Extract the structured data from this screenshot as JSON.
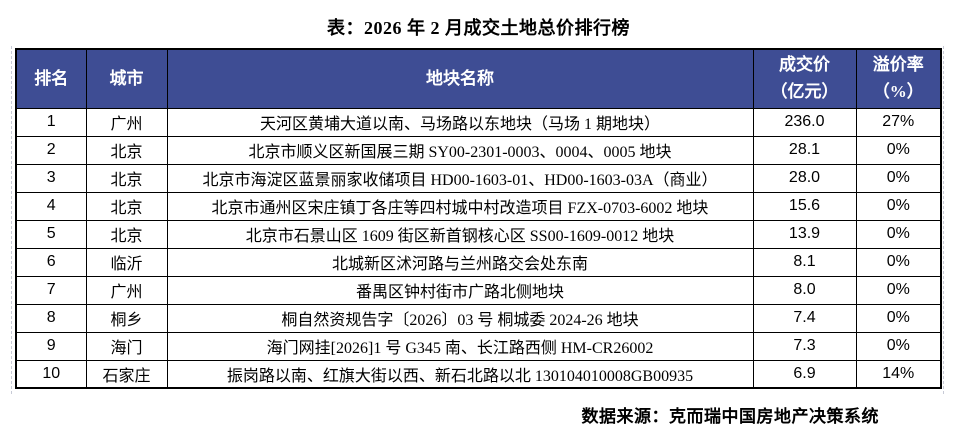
{
  "title": "表：2026 年 2 月成交土地总价排行榜",
  "colors": {
    "header_bg": "#3E4D94",
    "header_text": "#FFFFFF",
    "border": "#000000"
  },
  "table": {
    "headers": {
      "rank": "排名",
      "city": "城市",
      "plot": "地块名称",
      "price_line1": "成交价",
      "price_line2": "（亿元）",
      "premium_line1": "溢价率",
      "premium_line2": "（%）"
    },
    "rows": [
      {
        "rank": "1",
        "city": "广州",
        "plot": "天河区黄埔大道以南、马场路以东地块（马场 1 期地块）",
        "price": "236.0",
        "premium": "27%"
      },
      {
        "rank": "2",
        "city": "北京",
        "plot": "北京市顺义区新国展三期 SY00-2301-0003、0004、0005 地块",
        "price": "28.1",
        "premium": "0%"
      },
      {
        "rank": "3",
        "city": "北京",
        "plot": "北京市海淀区蓝景丽家收储项目 HD00-1603-01、HD00-1603-03A（商业）",
        "price": "28.0",
        "premium": "0%"
      },
      {
        "rank": "4",
        "city": "北京",
        "plot": "北京市通州区宋庄镇丁各庄等四村城中村改造项目 FZX-0703-6002 地块",
        "price": "15.6",
        "premium": "0%"
      },
      {
        "rank": "5",
        "city": "北京",
        "plot": "北京市石景山区 1609 街区新首钢核心区 SS00-1609-0012 地块",
        "price": "13.9",
        "premium": "0%"
      },
      {
        "rank": "6",
        "city": "临沂",
        "plot": "北城新区沭河路与兰州路交会处东南",
        "price": "8.1",
        "premium": "0%"
      },
      {
        "rank": "7",
        "city": "广州",
        "plot": "番禺区钟村街市广路北侧地块",
        "price": "8.0",
        "premium": "0%"
      },
      {
        "rank": "8",
        "city": "桐乡",
        "plot": "桐自然资规告字〔2026〕03 号 桐城委 2024-26 地块",
        "price": "7.4",
        "premium": "0%"
      },
      {
        "rank": "9",
        "city": "海门",
        "plot": "海门网挂[2026]1 号 G345 南、长江路西侧 HM-CR26002",
        "price": "7.3",
        "premium": "0%"
      },
      {
        "rank": "10",
        "city": "石家庄",
        "plot": "振岗路以南、红旗大街以西、新石北路以北 130104010008GB00935",
        "price": "6.9",
        "premium": "14%"
      }
    ]
  },
  "footer": "数据来源：克而瑞中国房地产决策系统"
}
